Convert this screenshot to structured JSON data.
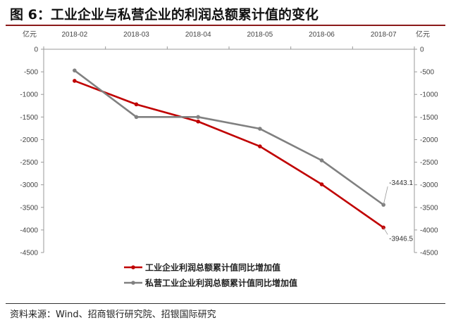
{
  "header": {
    "title": "图 6：工业企业与私营企业的利润总额累计值的变化"
  },
  "source": "资料来源：Wind、招商银行研究院、招银国际研究",
  "chart_data": {
    "type": "line",
    "title": "",
    "xlabel": "",
    "ylabel_left": "亿元",
    "ylabel_right": "亿元",
    "x": [
      "2018-02",
      "2018-03",
      "2018-04",
      "2018-05",
      "2018-06",
      "2018-07"
    ],
    "x_axis_position": "top",
    "ylim": [
      -4500,
      0
    ],
    "yticks": [
      0,
      -500,
      -1000,
      -1500,
      -2000,
      -2500,
      -3000,
      -3500,
      -4000,
      -4500
    ],
    "grid": false,
    "legend_position": "bottom",
    "series": [
      {
        "name": "工业企业利润总额累计值同比增加值",
        "color": "#c00000",
        "values": [
          -700,
          -1220,
          -1600,
          -2150,
          -2990,
          -3946.5
        ]
      },
      {
        "name": "私营工业企业利润总额累计值同比增加值",
        "color": "#808080",
        "values": [
          -470,
          -1500,
          -1500,
          -1760,
          -2460,
          -3443.1
        ]
      }
    ],
    "annotations": [
      {
        "series": 1,
        "index": 5,
        "text": "-3443.1"
      },
      {
        "series": 0,
        "index": 5,
        "text": "-3946.5"
      }
    ]
  }
}
